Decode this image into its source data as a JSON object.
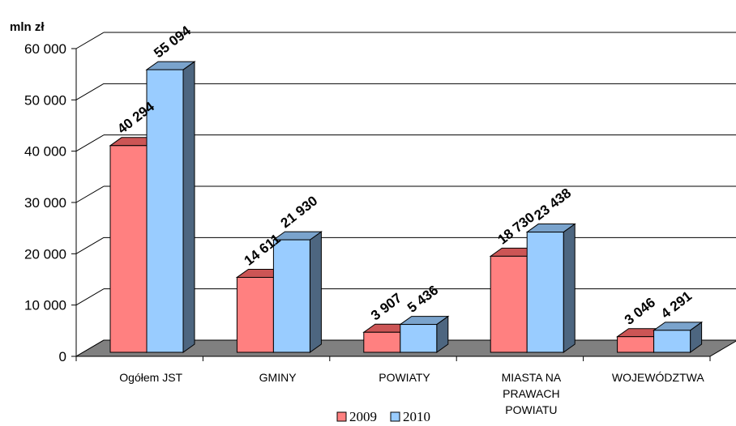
{
  "chart_data": {
    "type": "bar",
    "ylabel": "mln zł",
    "ylim": [
      0,
      60000
    ],
    "yticks": [
      0,
      10000,
      20000,
      30000,
      40000,
      50000,
      60000
    ],
    "ytick_labels": [
      "0",
      "10 000",
      "20 000",
      "30 000",
      "40 000",
      "50 000",
      "60 000"
    ],
    "grid": true,
    "legend_position": "bottom",
    "categories": [
      [
        "Ogółem JST"
      ],
      [
        "GMINY"
      ],
      [
        "POWIATY"
      ],
      [
        "MIASTA NA",
        "PRAWACH",
        "POWIATU"
      ],
      [
        "WOJEWÓDZTWA"
      ]
    ],
    "series": [
      {
        "name": "2009",
        "color": "#ff8080",
        "values": [
          40294,
          14611,
          3907,
          18730,
          3046
        ],
        "labels": [
          "40 294",
          "14 611",
          "3 907",
          "18 730",
          "3 046"
        ]
      },
      {
        "name": "2010",
        "color": "#99ccff",
        "values": [
          55094,
          21930,
          5436,
          23438,
          4291
        ],
        "labels": [
          "55 094",
          "21 930",
          "5 436",
          "23 438",
          "4 291"
        ]
      }
    ]
  }
}
